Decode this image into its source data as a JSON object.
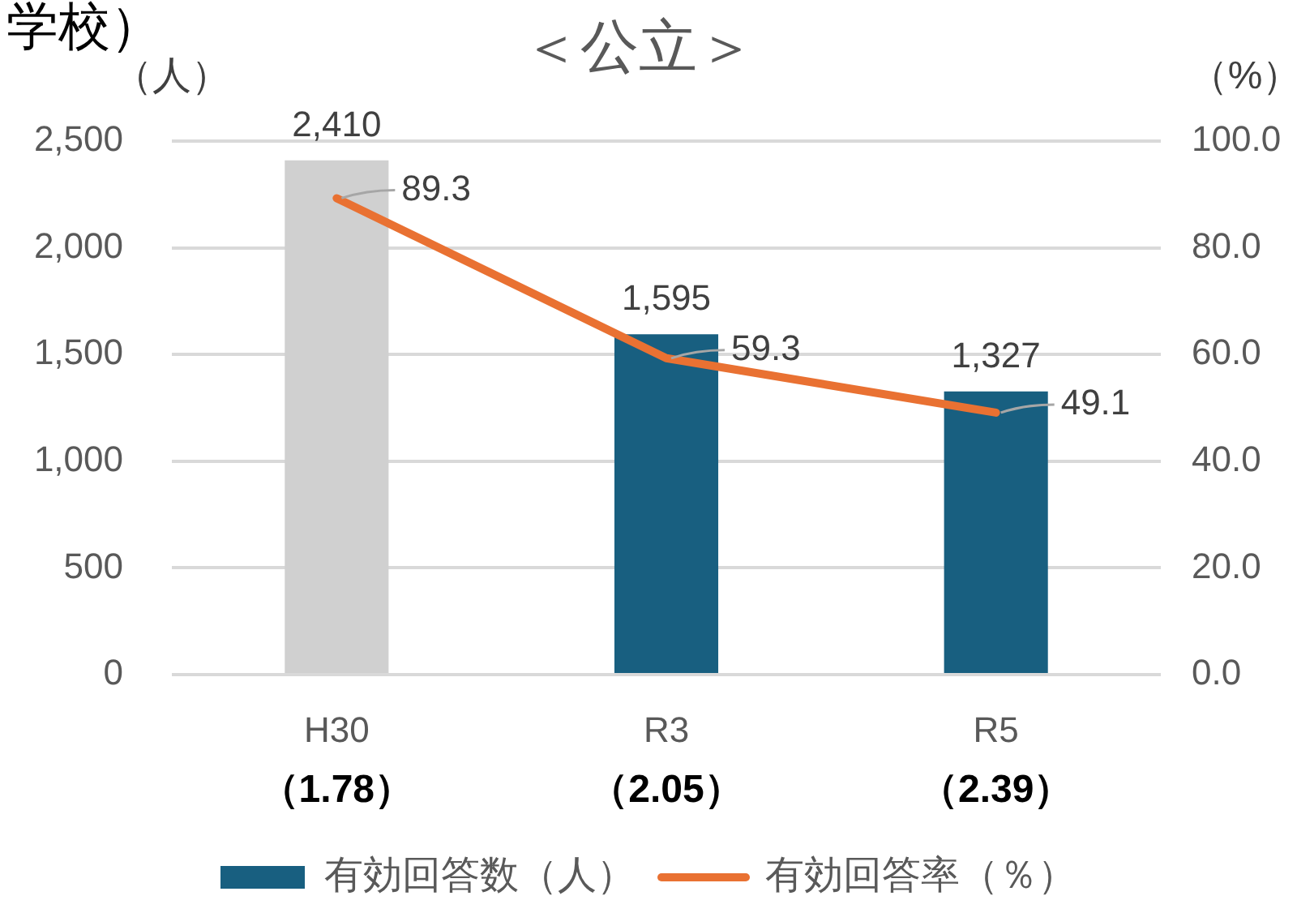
{
  "chart_data": {
    "type": "bar",
    "title": "＜公立＞",
    "ylabel": "（人）",
    "y2label": "（%）",
    "categories": [
      "H30",
      "R3",
      "R5"
    ],
    "series": [
      {
        "name": "有効回答数（人）",
        "color": "#185f80",
        "colors": [
          "#d0d0d0",
          "#185f80",
          "#185f80"
        ],
        "values": [
          2410,
          1595,
          1327
        ],
        "value_labels": [
          "2,410",
          "1,595",
          "1,327"
        ]
      },
      {
        "name": "有効回答率（％）",
        "type": "line",
        "axis": "y2",
        "color": "#e97132",
        "values": [
          89.3,
          59.3,
          49.1
        ],
        "value_labels": [
          "89.3",
          "59.3",
          "49.1"
        ]
      }
    ],
    "ylim": [
      0,
      2500
    ],
    "yticks": [
      0,
      500,
      {
        "value": 1000,
        "label": "1,000"
      },
      {
        "value": 1500,
        "label": "1,500"
      },
      {
        "value": 2000,
        "label": "2,000"
      },
      {
        "value": 2500,
        "label": "2,500"
      }
    ],
    "y2lim": [
      0,
      100
    ],
    "y2ticks": [
      {
        "value": 0,
        "label": "0.0"
      },
      {
        "value": 20,
        "label": "20.0"
      },
      {
        "value": 40,
        "label": "40.0"
      },
      {
        "value": 60,
        "label": "60.0"
      },
      {
        "value": 80,
        "label": "80.0"
      },
      {
        "value": 100,
        "label": "100.0"
      }
    ],
    "grid": "y",
    "legend": "bottom",
    "marker": "none",
    "annotations": [
      "学校）",
      "（1.78）",
      "（2.05）",
      "（2.39）"
    ]
  }
}
